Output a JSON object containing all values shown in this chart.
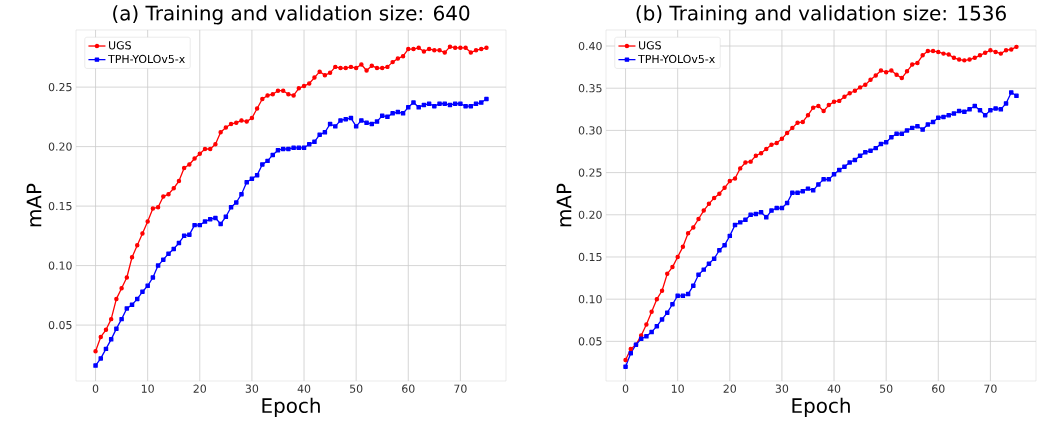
{
  "chart_data": [
    {
      "type": "line",
      "title": "(a) Training and validation size: 640",
      "xlabel": "Epoch",
      "ylabel": "mAP",
      "grid": true,
      "legend": "top left",
      "line_style": "solid",
      "x": [
        0,
        1,
        2,
        3,
        4,
        5,
        6,
        7,
        8,
        9,
        10,
        11,
        12,
        13,
        14,
        15,
        16,
        17,
        18,
        19,
        20,
        21,
        22,
        23,
        24,
        25,
        26,
        27,
        28,
        29,
        30,
        31,
        32,
        33,
        34,
        35,
        36,
        37,
        38,
        39,
        40,
        41,
        42,
        43,
        44,
        45,
        46,
        47,
        48,
        49,
        50,
        51,
        52,
        53,
        54,
        55,
        56,
        57,
        58,
        59,
        60,
        61,
        62,
        63,
        64,
        65,
        66,
        67,
        68,
        69,
        70,
        71,
        72,
        73,
        74,
        75
      ],
      "xlim": [
        -3.75,
        78.75
      ],
      "xticks": [
        0,
        10,
        20,
        30,
        40,
        50,
        60,
        70
      ],
      "ylim": [
        0.003,
        0.298
      ],
      "yticks": [
        {
          "value": 0.05,
          "label": "0.05"
        },
        {
          "value": 0.1,
          "label": "0.10"
        },
        {
          "value": 0.15,
          "label": "0.15"
        },
        {
          "value": 0.2,
          "label": "0.20"
        },
        {
          "value": 0.25,
          "label": "0.25"
        }
      ],
      "series": [
        {
          "name": "UGS",
          "color": "#ff0000",
          "marker": "circle",
          "values": [
            0.028,
            0.04,
            0.046,
            0.055,
            0.072,
            0.081,
            0.09,
            0.107,
            0.117,
            0.127,
            0.137,
            0.148,
            0.149,
            0.158,
            0.16,
            0.165,
            0.171,
            0.182,
            0.185,
            0.19,
            0.194,
            0.198,
            0.198,
            0.202,
            0.212,
            0.216,
            0.219,
            0.22,
            0.222,
            0.221,
            0.224,
            0.232,
            0.24,
            0.243,
            0.244,
            0.247,
            0.247,
            0.244,
            0.243,
            0.249,
            0.251,
            0.253,
            0.258,
            0.263,
            0.26,
            0.262,
            0.267,
            0.266,
            0.266,
            0.267,
            0.266,
            0.269,
            0.264,
            0.268,
            0.266,
            0.266,
            0.267,
            0.271,
            0.274,
            0.276,
            0.282,
            0.282,
            0.283,
            0.28,
            0.282,
            0.281,
            0.281,
            0.279,
            0.284,
            0.283,
            0.283,
            0.283,
            0.279,
            0.281,
            0.282,
            0.283
          ]
        },
        {
          "name": "TPH-YOLOv5-x",
          "color": "#0000ff",
          "marker": "square",
          "values": [
            0.016,
            0.022,
            0.03,
            0.038,
            0.047,
            0.055,
            0.064,
            0.067,
            0.072,
            0.078,
            0.083,
            0.09,
            0.1,
            0.105,
            0.11,
            0.114,
            0.119,
            0.125,
            0.126,
            0.134,
            0.134,
            0.137,
            0.139,
            0.14,
            0.135,
            0.141,
            0.149,
            0.153,
            0.16,
            0.17,
            0.173,
            0.176,
            0.185,
            0.188,
            0.193,
            0.197,
            0.198,
            0.198,
            0.199,
            0.199,
            0.199,
            0.202,
            0.204,
            0.21,
            0.212,
            0.219,
            0.217,
            0.222,
            0.223,
            0.224,
            0.217,
            0.222,
            0.22,
            0.219,
            0.221,
            0.226,
            0.225,
            0.228,
            0.229,
            0.228,
            0.233,
            0.237,
            0.233,
            0.235,
            0.236,
            0.234,
            0.236,
            0.236,
            0.235,
            0.236,
            0.236,
            0.234,
            0.234,
            0.236,
            0.237,
            0.24
          ]
        }
      ]
    },
    {
      "type": "line",
      "title": "(b) Training and validation size: 1536",
      "xlabel": "Epoch",
      "ylabel": "mAP",
      "grid": true,
      "legend": "top left",
      "line_style": "solid",
      "x": [
        0,
        1,
        2,
        3,
        4,
        5,
        6,
        7,
        8,
        9,
        10,
        11,
        12,
        13,
        14,
        15,
        16,
        17,
        18,
        19,
        20,
        21,
        22,
        23,
        24,
        25,
        26,
        27,
        28,
        29,
        30,
        31,
        32,
        33,
        34,
        35,
        36,
        37,
        38,
        39,
        40,
        41,
        42,
        43,
        44,
        45,
        46,
        47,
        48,
        49,
        50,
        51,
        52,
        53,
        54,
        55,
        56,
        57,
        58,
        59,
        60,
        61,
        62,
        63,
        64,
        65,
        66,
        67,
        68,
        69,
        70,
        71,
        72,
        73,
        74,
        75
      ],
      "xlim": [
        -3.75,
        78.75
      ],
      "xticks": [
        0,
        10,
        20,
        30,
        40,
        50,
        60,
        70
      ],
      "ylim": [
        0.003,
        0.419
      ],
      "yticks": [
        {
          "value": 0.05,
          "label": "0.05"
        },
        {
          "value": 0.1,
          "label": "0.10"
        },
        {
          "value": 0.15,
          "label": "0.15"
        },
        {
          "value": 0.2,
          "label": "0.20"
        },
        {
          "value": 0.25,
          "label": "0.25"
        },
        {
          "value": 0.3,
          "label": "0.30"
        },
        {
          "value": 0.35,
          "label": "0.35"
        },
        {
          "value": 0.4,
          "label": "0.40"
        }
      ],
      "series": [
        {
          "name": "UGS",
          "color": "#ff0000",
          "marker": "circle",
          "values": [
            0.028,
            0.041,
            0.046,
            0.057,
            0.07,
            0.085,
            0.1,
            0.11,
            0.13,
            0.138,
            0.15,
            0.162,
            0.178,
            0.185,
            0.195,
            0.205,
            0.213,
            0.22,
            0.225,
            0.232,
            0.24,
            0.243,
            0.255,
            0.262,
            0.263,
            0.27,
            0.273,
            0.278,
            0.283,
            0.285,
            0.29,
            0.297,
            0.303,
            0.309,
            0.31,
            0.318,
            0.327,
            0.329,
            0.323,
            0.33,
            0.334,
            0.335,
            0.34,
            0.344,
            0.347,
            0.351,
            0.354,
            0.36,
            0.365,
            0.371,
            0.369,
            0.371,
            0.366,
            0.362,
            0.37,
            0.378,
            0.38,
            0.389,
            0.394,
            0.394,
            0.393,
            0.391,
            0.39,
            0.386,
            0.384,
            0.383,
            0.384,
            0.386,
            0.389,
            0.392,
            0.395,
            0.393,
            0.391,
            0.395,
            0.396,
            0.399
          ]
        },
        {
          "name": "TPH-YOLOv5-x",
          "color": "#0000ff",
          "marker": "square",
          "values": [
            0.02,
            0.036,
            0.046,
            0.053,
            0.056,
            0.061,
            0.068,
            0.076,
            0.084,
            0.094,
            0.104,
            0.104,
            0.106,
            0.116,
            0.129,
            0.135,
            0.142,
            0.148,
            0.158,
            0.164,
            0.175,
            0.188,
            0.191,
            0.194,
            0.2,
            0.201,
            0.203,
            0.197,
            0.205,
            0.208,
            0.208,
            0.214,
            0.226,
            0.226,
            0.228,
            0.231,
            0.229,
            0.236,
            0.242,
            0.242,
            0.248,
            0.253,
            0.257,
            0.262,
            0.265,
            0.27,
            0.274,
            0.276,
            0.279,
            0.284,
            0.286,
            0.292,
            0.296,
            0.296,
            0.3,
            0.303,
            0.305,
            0.301,
            0.307,
            0.31,
            0.315,
            0.316,
            0.318,
            0.32,
            0.323,
            0.322,
            0.325,
            0.329,
            0.324,
            0.318,
            0.324,
            0.326,
            0.325,
            0.332,
            0.345,
            0.341
          ]
        }
      ]
    }
  ]
}
